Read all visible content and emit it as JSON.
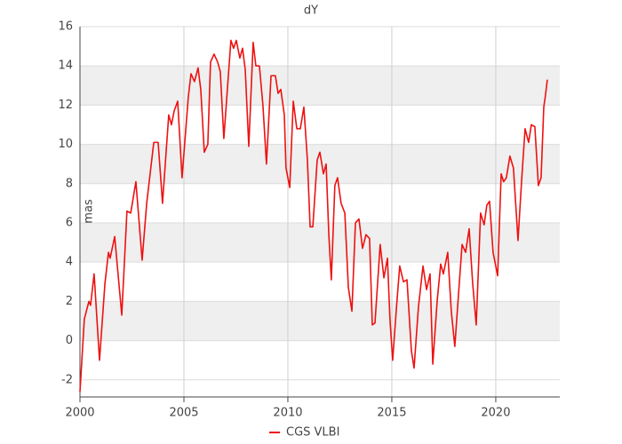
{
  "chart_data": {
    "type": "line",
    "title": "dY",
    "y_label": "mas",
    "xlim": [
      2000,
      2023.08
    ],
    "xticks": [
      2000,
      2005,
      2010,
      2015,
      2020
    ],
    "ylim": [
      -2.87,
      16
    ],
    "yticks": [
      -2,
      0,
      2,
      4,
      6,
      8,
      10,
      12,
      14,
      16
    ],
    "grid": true,
    "series": [
      {
        "name": "CGS VLBI",
        "color": "#ee1111",
        "x": [
          2000.0,
          2000.21,
          2000.43,
          2000.51,
          2000.68,
          2000.94,
          2001.2,
          2001.37,
          2001.45,
          2001.67,
          2002.01,
          2002.26,
          2002.44,
          2002.69,
          2002.99,
          2003.21,
          2003.55,
          2003.76,
          2003.89,
          2003.97,
          2004.27,
          2004.4,
          2004.53,
          2004.7,
          2004.91,
          2005.21,
          2005.34,
          2005.51,
          2005.68,
          2005.81,
          2005.98,
          2006.15,
          2006.28,
          2006.45,
          2006.62,
          2006.75,
          2006.92,
          2007.09,
          2007.26,
          2007.39,
          2007.52,
          2007.69,
          2007.82,
          2007.95,
          2008.12,
          2008.33,
          2008.46,
          2008.63,
          2008.8,
          2008.97,
          2009.19,
          2009.4,
          2009.53,
          2009.66,
          2009.83,
          2009.91,
          2010.09,
          2010.26,
          2010.43,
          2010.6,
          2010.77,
          2010.94,
          2011.07,
          2011.2,
          2011.41,
          2011.54,
          2011.71,
          2011.84,
          2011.97,
          2012.09,
          2012.26,
          2012.39,
          2012.56,
          2012.74,
          2012.91,
          2013.08,
          2013.25,
          2013.42,
          2013.59,
          2013.76,
          2013.93,
          2014.06,
          2014.19,
          2014.44,
          2014.62,
          2014.79,
          2014.91,
          2015.04,
          2015.21,
          2015.38,
          2015.56,
          2015.73,
          2015.94,
          2016.07,
          2016.28,
          2016.5,
          2016.67,
          2016.84,
          2016.97,
          2017.18,
          2017.35,
          2017.48,
          2017.69,
          2017.86,
          2018.03,
          2018.21,
          2018.38,
          2018.55,
          2018.72,
          2018.89,
          2019.06,
          2019.27,
          2019.44,
          2019.57,
          2019.7,
          2019.87,
          2020.09,
          2020.26,
          2020.38,
          2020.51,
          2020.68,
          2020.85,
          2021.07,
          2021.24,
          2021.41,
          2021.58,
          2021.71,
          2021.88,
          2022.05,
          2022.18,
          2022.31,
          2022.39,
          2022.48
        ],
        "values": [
          -2.6,
          1.1,
          2.0,
          1.8,
          3.4,
          -1.0,
          2.9,
          4.5,
          4.2,
          5.3,
          1.3,
          6.6,
          6.5,
          8.1,
          4.1,
          7.0,
          10.1,
          10.1,
          8.2,
          7.0,
          11.5,
          11.0,
          11.7,
          12.2,
          8.3,
          12.4,
          13.6,
          13.2,
          13.9,
          12.8,
          9.6,
          10.0,
          14.2,
          14.6,
          14.2,
          13.7,
          10.3,
          12.8,
          15.3,
          14.9,
          15.3,
          14.4,
          14.9,
          13.8,
          9.9,
          15.2,
          14.0,
          14.0,
          12.0,
          9.0,
          13.5,
          13.5,
          12.6,
          12.8,
          11.5,
          8.8,
          7.8,
          12.2,
          10.8,
          10.8,
          11.9,
          9.2,
          5.8,
          5.8,
          9.2,
          9.6,
          8.5,
          9.0,
          5.4,
          3.1,
          7.9,
          8.3,
          7.0,
          6.5,
          2.7,
          1.5,
          6.0,
          6.2,
          4.7,
          5.4,
          5.2,
          0.8,
          0.9,
          4.9,
          3.2,
          4.2,
          1.1,
          -1.0,
          1.5,
          3.8,
          3.0,
          3.1,
          -0.5,
          -1.4,
          1.7,
          3.8,
          2.6,
          3.4,
          -1.2,
          2.0,
          3.9,
          3.4,
          4.5,
          1.5,
          -0.3,
          2.4,
          4.9,
          4.5,
          5.7,
          2.9,
          0.8,
          6.5,
          5.9,
          6.9,
          7.1,
          4.5,
          3.3,
          8.5,
          8.1,
          8.3,
          9.4,
          8.8,
          5.1,
          8.1,
          10.8,
          10.1,
          11.0,
          10.9,
          7.9,
          8.3,
          11.9,
          12.5,
          13.3
        ]
      }
    ]
  }
}
